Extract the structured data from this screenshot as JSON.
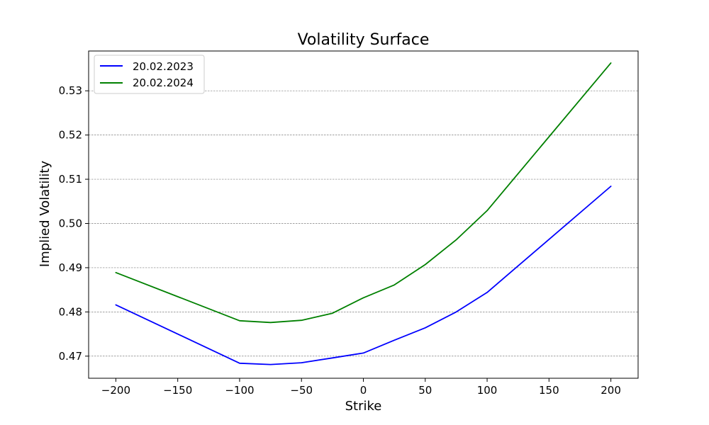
{
  "chart_data": {
    "type": "line",
    "title": "Volatility Surface",
    "xlabel": "Strike",
    "ylabel": "Implied Volatility",
    "xlim": [
      -222,
      222
    ],
    "ylim": [
      0.465,
      0.539
    ],
    "xticks": [
      -200,
      -150,
      -100,
      -50,
      0,
      50,
      100,
      150,
      200
    ],
    "xtick_labels": [
      "−200",
      "−150",
      "−100",
      "−50",
      "0",
      "50",
      "100",
      "150",
      "200"
    ],
    "yticks": [
      0.47,
      0.48,
      0.49,
      0.5,
      0.51,
      0.52,
      0.53
    ],
    "ytick_labels": [
      "0.47",
      "0.48",
      "0.49",
      "0.50",
      "0.51",
      "0.52",
      "0.53"
    ],
    "grid": "horizontal-dashed",
    "legend_position": "top-left",
    "x": [
      -200,
      -100,
      -75,
      -50,
      -25,
      0,
      25,
      50,
      75,
      100,
      200
    ],
    "series": [
      {
        "name": "20.02.2023",
        "color": "#0000ff",
        "values": [
          0.4816,
          0.4684,
          0.4681,
          0.4685,
          0.4696,
          0.4707,
          0.4736,
          0.4764,
          0.48,
          0.4844,
          0.5084
        ]
      },
      {
        "name": "20.02.2024",
        "color": "#008000",
        "values": [
          0.4889,
          0.478,
          0.4776,
          0.4781,
          0.4797,
          0.4832,
          0.4861,
          0.4907,
          0.4963,
          0.5029,
          0.5363
        ]
      }
    ]
  }
}
